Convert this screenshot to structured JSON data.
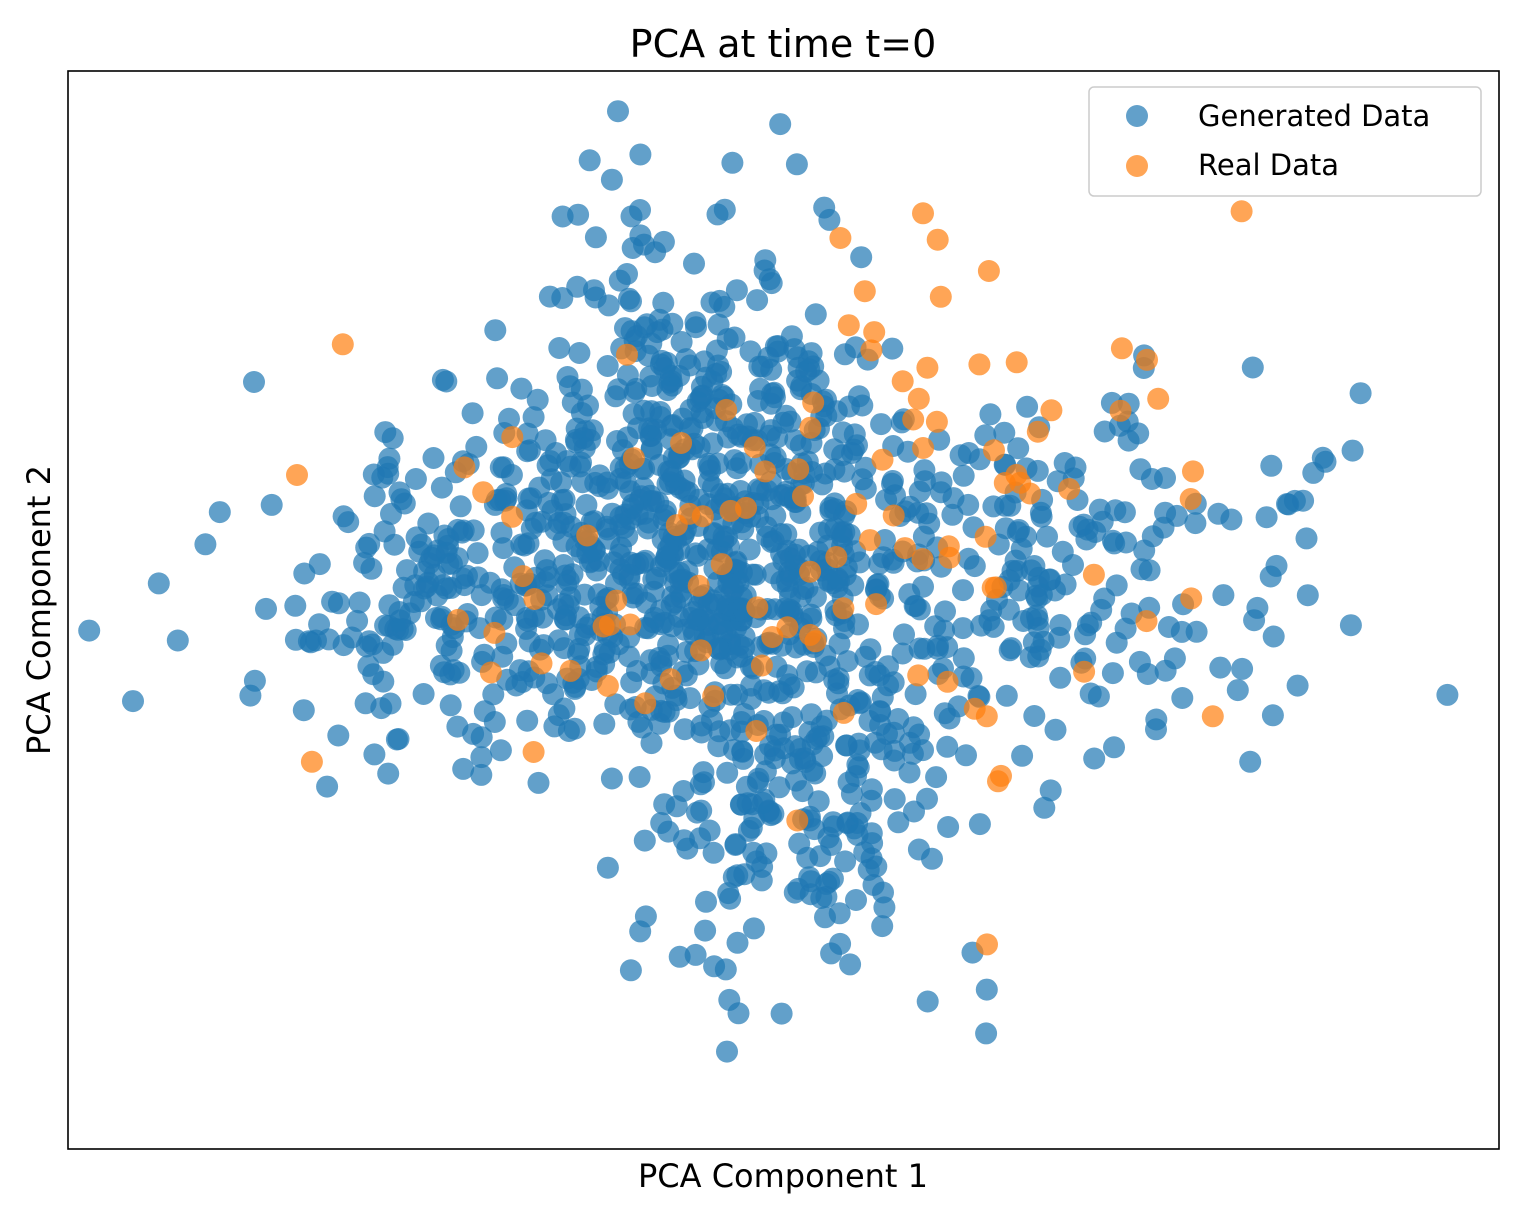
{
  "chart_data": {
    "type": "scatter",
    "title": "PCA at time t=0",
    "xlabel": "PCA Component 1",
    "ylabel": "PCA Component 2",
    "xlim": [
      -4.4,
      4.4
    ],
    "ylim": [
      -3.6,
      3.5
    ],
    "xticks": [],
    "yticks": [],
    "grid": false,
    "legend": {
      "location": "top-right"
    },
    "series": [
      {
        "name": "Generated Data",
        "color": "#1f77b4",
        "alpha": 0.7,
        "marker": "circle",
        "count": 1400,
        "cluster_spread": "four overlapping clusters (upper-center, left, lower-center, right) with long scattered tails",
        "x": [
          -4.0,
          2.87,
          2.35,
          -0.02,
          -0.88,
          0.25,
          -0.95,
          3.5,
          3.0,
          1.25
        ],
        "y": [
          -0.65,
          -1.05,
          -0.45,
          3.15,
          2.95,
          2.6,
          2.0,
          1.0,
          0.9,
          -2.55
        ]
      },
      {
        "name": "Real Data",
        "color": "#ff7f0e",
        "alpha": 0.7,
        "marker": "circle",
        "count": 110,
        "x": [
          -2.71,
          -2.9,
          0.35,
          0.5,
          1.25,
          2.64,
          -1.08,
          -0.63,
          0.12,
          -0.92
        ],
        "y": [
          1.7,
          -1.05,
          2.4,
          2.05,
          -0.75,
          -0.75,
          -0.55,
          1.05,
          0.7,
          0.95
        ]
      }
    ]
  }
}
